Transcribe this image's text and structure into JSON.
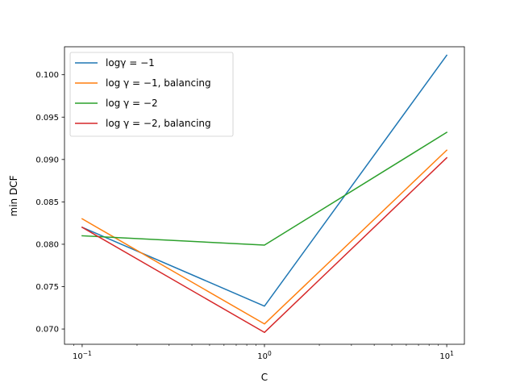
{
  "chart_data": {
    "type": "line",
    "xlabel": "C",
    "ylabel": "min DCF",
    "x_scale": "log",
    "x": [
      0.1,
      1,
      10
    ],
    "xlim": [
      0.08,
      12.5
    ],
    "ylim": [
      0.0682,
      0.1033
    ],
    "x_ticks": [
      {
        "value": 0.1,
        "base": "10",
        "exp": "−1"
      },
      {
        "value": 1,
        "base": "10",
        "exp": "0"
      },
      {
        "value": 10,
        "base": "10",
        "exp": "1"
      }
    ],
    "y_ticks": [
      {
        "value": 0.07,
        "label": "0.070"
      },
      {
        "value": 0.075,
        "label": "0.075"
      },
      {
        "value": 0.08,
        "label": "0.080"
      },
      {
        "value": 0.085,
        "label": "0.085"
      },
      {
        "value": 0.09,
        "label": "0.090"
      },
      {
        "value": 0.095,
        "label": "0.095"
      },
      {
        "value": 0.1,
        "label": "0.100"
      }
    ],
    "grid": false,
    "legend_position": "upper-left",
    "series": [
      {
        "name": "logγ = −1",
        "color": "#1f77b4",
        "values": [
          0.082,
          0.0727,
          0.1023
        ]
      },
      {
        "name": "log γ = −1, balancing",
        "color": "#ff7f0e",
        "values": [
          0.083,
          0.0706,
          0.0911
        ]
      },
      {
        "name": "log γ = −2",
        "color": "#2ca02c",
        "values": [
          0.081,
          0.0799,
          0.0932
        ]
      },
      {
        "name": "log γ = −2, balancing",
        "color": "#d62728",
        "values": [
          0.082,
          0.0696,
          0.0902
        ]
      }
    ]
  }
}
